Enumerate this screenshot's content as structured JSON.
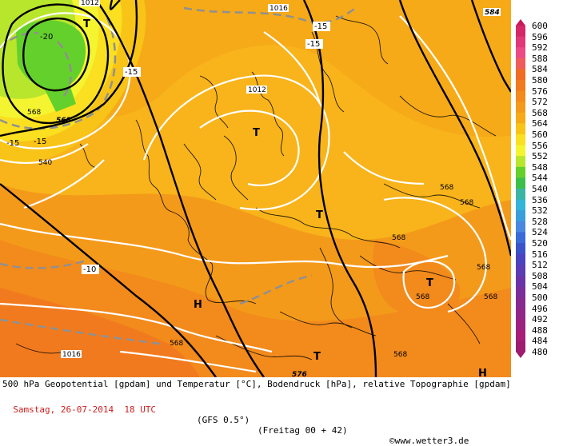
{
  "footer": {
    "title": "500 hPa Geopotential [gpdam] und Temperatur [°C], Bodendruck [hPa], relative Topographie [gpdam]",
    "date": "Samstag, 26-07-2014  18 UTC",
    "model": "(GFS 0.5°)",
    "run": "(Freitag 00 + 42)",
    "copyright": "©www.wetter3.de"
  },
  "legend": {
    "levels": [
      "600",
      "596",
      "592",
      "588",
      "584",
      "580",
      "576",
      "572",
      "568",
      "564",
      "560",
      "556",
      "552",
      "548",
      "544",
      "540",
      "536",
      "532",
      "528",
      "524",
      "520",
      "516",
      "512",
      "508",
      "504",
      "500",
      "496",
      "492",
      "488",
      "484",
      "480"
    ],
    "colors": [
      "#c8185a",
      "#d42868",
      "#e03878",
      "#ec4a86",
      "#f05c5c",
      "#f06c22",
      "#f27a1e",
      "#f28a1c",
      "#f49a1a",
      "#f6aa18",
      "#f8c418",
      "#fae020",
      "#f4f430",
      "#b8e62c",
      "#64d02c",
      "#3cbe4a",
      "#3cb4a4",
      "#34b4d8",
      "#3a9edc",
      "#4888e0",
      "#3a6ad8",
      "#3a54c8",
      "#4a44c0",
      "#5a3cb4",
      "#6a34a8",
      "#7a2e9c",
      "#862a92",
      "#922688",
      "#9c2280",
      "#a61e78",
      "#9e1c70"
    ]
  },
  "map_labels": {
    "temps": [
      "-20",
      "-15",
      "-15",
      "-15",
      "-15",
      "-15",
      "-10"
    ],
    "pressures": [
      "1012",
      "1016",
      "1016",
      "1012"
    ],
    "topography": [
      "568",
      "584",
      "568",
      "540",
      "568",
      "568",
      "568",
      "568",
      "568",
      "568",
      "568",
      "568",
      "576"
    ],
    "pressure_centers": [
      "T",
      "T",
      "T",
      "T",
      "T",
      "H",
      "H"
    ]
  }
}
